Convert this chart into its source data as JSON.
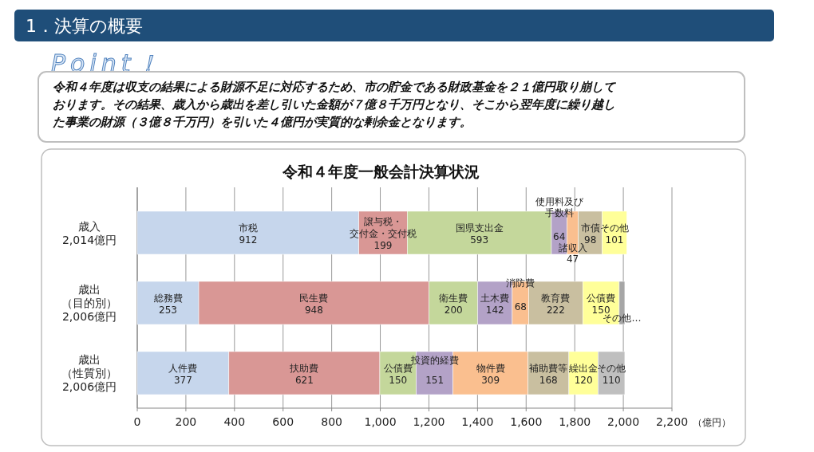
{
  "chart_data": {
    "type": "bar",
    "orientation": "horizontal",
    "stacked": true,
    "title": "令和４年度一般会計決算状況",
    "annotations": [
      "1．決算の概要",
      "Point！",
      "令和４年度は収支の結果による財源不足に対応するため、市の貯金である財政基金を２１億円取り崩しております。その結果、歳入から歳出を差し引いた金額が７億８千万円となり、そこから翌年度に繰り越した事業の財源（３億８千万円）を引いた４億円が実質的な剰余金となります。"
    ],
    "xlabel": "（億円）",
    "categories": [
      "歳入\n2,014億円",
      "歳出（目的別）\n2,006億円",
      "歳出（性質別）\n2,006億円"
    ],
    "xlim": [
      0,
      2200
    ],
    "xticks": [
      0,
      200,
      400,
      600,
      800,
      {
        "value": 1000,
        "label": "1,000"
      },
      {
        "value": 1200,
        "label": "1,200"
      },
      {
        "value": 1400,
        "label": "1,400"
      },
      {
        "value": 1600,
        "label": "1,600"
      },
      {
        "value": 1800,
        "label": "1,800"
      },
      {
        "value": 2000,
        "label": "2,000"
      },
      {
        "value": 2200,
        "label": "2,200"
      }
    ],
    "grid": "x",
    "series": [
      {
        "name": "市税",
        "color": "#c6d6ec",
        "values": [
          912,
          null,
          null
        ],
        "value_labels": [
          "912",
          null,
          null
        ]
      },
      {
        "name": "譲与税・交付金・交付税",
        "color": "#d99795",
        "values": [
          199,
          null,
          null
        ],
        "value_labels": [
          "199",
          null,
          null
        ]
      },
      {
        "name": "国県支出金",
        "color": "#c4d79b",
        "values": [
          593,
          null,
          null
        ],
        "value_labels": [
          "593",
          null,
          null
        ]
      },
      {
        "name": "使用料及び手数料",
        "color": "#b3a2c7",
        "values": [
          64,
          null,
          null
        ],
        "value_labels": [
          "64",
          null,
          null
        ]
      },
      {
        "name": "諸収入",
        "color": "#fabf8f",
        "values": [
          47,
          null,
          null
        ],
        "value_labels": [
          "47",
          null,
          null
        ]
      },
      {
        "name": "市債",
        "color": "#c9bfa0",
        "values": [
          98,
          null,
          null
        ],
        "value_labels": [
          "98",
          null,
          null
        ]
      },
      {
        "name": "その他",
        "color": "#ffff99",
        "values": [
          101,
          null,
          null
        ],
        "value_labels": [
          "101",
          null,
          null
        ]
      },
      {
        "name": "総務費",
        "color": "#c6d6ec",
        "values": [
          null,
          253,
          null
        ],
        "value_labels": [
          null,
          "253",
          null
        ]
      },
      {
        "name": "民生費",
        "color": "#d99795",
        "values": [
          null,
          948,
          null
        ],
        "value_labels": [
          null,
          "948",
          null
        ]
      },
      {
        "name": "衛生費",
        "color": "#c4d79b",
        "values": [
          null,
          200,
          null
        ],
        "value_labels": [
          null,
          "200",
          null
        ]
      },
      {
        "name": "土木費",
        "color": "#b3a2c7",
        "values": [
          null,
          142,
          null
        ],
        "value_labels": [
          null,
          "142",
          null
        ]
      },
      {
        "name": "消防費",
        "color": "#fabf8f",
        "values": [
          null,
          68,
          null
        ],
        "value_labels": [
          null,
          "68",
          null
        ]
      },
      {
        "name": "教育費",
        "color": "#c9bfa0",
        "values": [
          null,
          222,
          null
        ],
        "value_labels": [
          null,
          "222",
          null
        ]
      },
      {
        "name": "公債費",
        "color": "#ffff99",
        "values": [
          null,
          150,
          null
        ],
        "value_labels": [
          null,
          "150",
          null
        ]
      },
      {
        "name": "その他…",
        "color": "#a6a6a6",
        "values": [
          null,
          23,
          null
        ],
        "value_labels": [
          null,
          null,
          null
        ]
      },
      {
        "name": "人件費",
        "color": "#c6d6ec",
        "values": [
          null,
          null,
          377
        ],
        "value_labels": [
          null,
          null,
          "377"
        ]
      },
      {
        "name": "扶助費",
        "color": "#d99795",
        "values": [
          null,
          null,
          621
        ],
        "value_labels": [
          null,
          null,
          "621"
        ]
      },
      {
        "name": "公債費",
        "color": "#c4d79b",
        "values": [
          null,
          null,
          150
        ],
        "value_labels": [
          null,
          null,
          "150"
        ]
      },
      {
        "name": "投資的経費",
        "color": "#b3a2c7",
        "values": [
          null,
          null,
          151
        ],
        "value_labels": [
          null,
          null,
          "151"
        ]
      },
      {
        "name": "物件費",
        "color": "#fabf8f",
        "values": [
          null,
          null,
          309
        ],
        "value_labels": [
          null,
          null,
          "309"
        ]
      },
      {
        "name": "補助費等",
        "color": "#c9bfa0",
        "values": [
          null,
          null,
          168
        ],
        "value_labels": [
          null,
          null,
          "168"
        ]
      },
      {
        "name": "繰出金",
        "color": "#ffff99",
        "values": [
          null,
          null,
          120
        ],
        "value_labels": [
          null,
          null,
          "120"
        ]
      },
      {
        "name": "その他",
        "color": "#bfbfbf",
        "values": [
          null,
          null,
          110
        ],
        "value_labels": [
          null,
          null,
          "110"
        ]
      }
    ]
  }
}
